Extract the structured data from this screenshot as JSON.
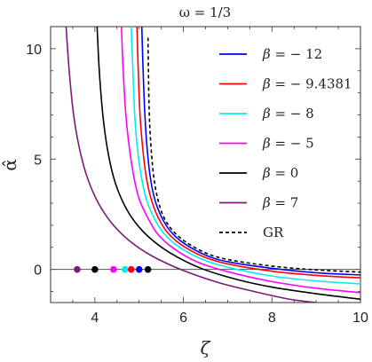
{
  "chart_data": {
    "type": "line",
    "title": "ω = 1/3",
    "xlabel": "ζ",
    "ylabel": "α̂",
    "xlim": [
      3,
      10
    ],
    "ylim": [
      -1.5,
      11
    ],
    "xticks": [
      "4",
      "6",
      "8",
      "10"
    ],
    "yticks": [
      "0",
      "5",
      "10"
    ],
    "legend_position": "top-right",
    "grid": false,
    "series": [
      {
        "name": "β = − 12",
        "color": "#0000ff",
        "dash": "solid",
        "x": [
          5.06,
          5.09,
          5.13,
          5.18,
          5.25,
          5.35,
          5.5,
          5.7,
          6.0,
          6.5,
          7.0,
          8.0,
          9.0,
          10.0
        ],
        "y": [
          11,
          9.0,
          7.0,
          5.5,
          4.2,
          3.2,
          2.4,
          1.75,
          1.2,
          0.65,
          0.35,
          0.05,
          -0.15,
          -0.25
        ]
      },
      {
        "name": "β = − 9.4381",
        "color": "#ff0000",
        "dash": "solid",
        "x": [
          4.95,
          4.98,
          5.02,
          5.08,
          5.16,
          5.27,
          5.42,
          5.63,
          5.95,
          6.45,
          7.0,
          8.0,
          9.0,
          10.0
        ],
        "y": [
          11,
          9.0,
          7.0,
          5.5,
          4.2,
          3.2,
          2.4,
          1.7,
          1.12,
          0.58,
          0.25,
          -0.08,
          -0.27,
          -0.38
        ]
      },
      {
        "name": "β = − 8",
        "color": "#00eeee",
        "dash": "solid",
        "x": [
          4.82,
          4.86,
          4.9,
          4.96,
          5.05,
          5.16,
          5.32,
          5.55,
          5.88,
          6.4,
          7.0,
          8.0,
          9.0,
          10.0
        ],
        "y": [
          11,
          9.0,
          7.0,
          5.5,
          4.2,
          3.2,
          2.4,
          1.65,
          1.05,
          0.48,
          0.1,
          -0.3,
          -0.52,
          -0.65
        ]
      },
      {
        "name": "β = − 5",
        "color": "#ff00ff",
        "dash": "solid",
        "x": [
          4.6,
          4.64,
          4.7,
          4.78,
          4.88,
          5.0,
          5.18,
          5.42,
          5.78,
          6.3,
          7.0,
          8.0,
          9.0,
          10.0
        ],
        "y": [
          11,
          9.0,
          7.0,
          5.5,
          4.2,
          3.2,
          2.4,
          1.6,
          0.95,
          0.35,
          -0.1,
          -0.55,
          -0.85,
          -1.05
        ]
      },
      {
        "name": "β = 0",
        "color": "#000000",
        "dash": "solid",
        "x": [
          4.05,
          4.1,
          4.18,
          4.28,
          4.42,
          4.6,
          4.85,
          5.2,
          5.7,
          6.4,
          7.2,
          8.0,
          9.0,
          10.0
        ],
        "y": [
          11,
          9.0,
          7.0,
          5.5,
          4.2,
          3.2,
          2.3,
          1.5,
          0.75,
          0.05,
          -0.45,
          -0.8,
          -1.1,
          -1.35
        ]
      },
      {
        "name": "β = 7",
        "color": "#7b1a7b",
        "dash": "solid",
        "x": [
          3.35,
          3.42,
          3.52,
          3.66,
          3.84,
          4.08,
          4.38,
          4.78,
          5.3,
          6.0,
          6.8,
          7.6,
          8.4,
          9.0
        ],
        "y": [
          11,
          9.0,
          7.0,
          5.4,
          4.1,
          3.0,
          2.1,
          1.3,
          0.6,
          -0.05,
          -0.6,
          -1.0,
          -1.35,
          -1.5
        ]
      },
      {
        "name": "GR",
        "color": "#000000",
        "dash": "dashed",
        "x": [
          5.2,
          5.21,
          5.23,
          5.27,
          5.33,
          5.42,
          5.55,
          5.75,
          6.05,
          6.5,
          7.0,
          8.0,
          9.0,
          10.0
        ],
        "y": [
          10.5,
          9.0,
          7.0,
          5.5,
          4.2,
          3.2,
          2.4,
          1.78,
          1.25,
          0.75,
          0.45,
          0.15,
          -0.02,
          -0.12
        ]
      }
    ],
    "markers": [
      {
        "x": 3.6,
        "y": 0,
        "color": "#7b1a7b"
      },
      {
        "x": 4.0,
        "y": 0,
        "color": "#000000"
      },
      {
        "x": 4.42,
        "y": 0,
        "color": "#ff00ff"
      },
      {
        "x": 4.68,
        "y": 0,
        "color": "#00eeee"
      },
      {
        "x": 4.82,
        "y": 0,
        "color": "#ff0000"
      },
      {
        "x": 5.0,
        "y": 0,
        "color": "#0000ff"
      },
      {
        "x": 5.2,
        "y": 0,
        "color": "#000000"
      }
    ]
  }
}
